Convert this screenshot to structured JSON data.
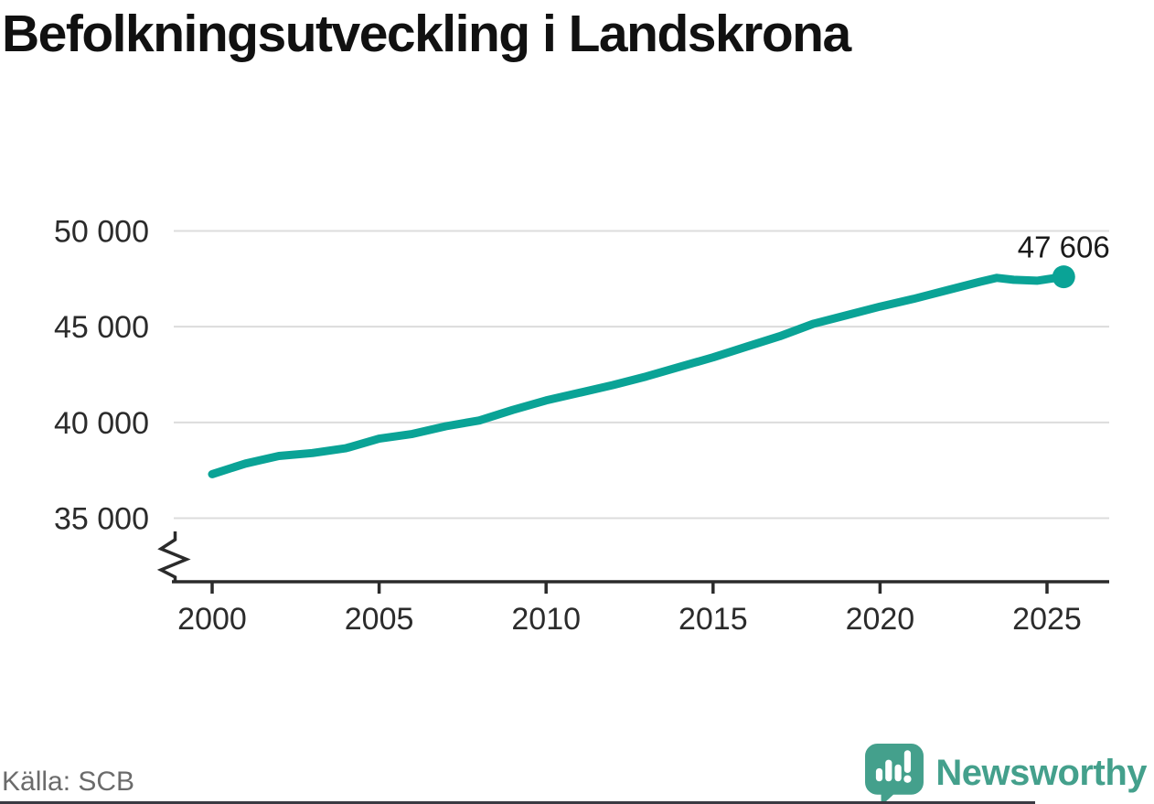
{
  "title": "Befolkningsutveckling i Landskrona",
  "source": "Källa: SCB",
  "branding": {
    "name": "Newsworthy"
  },
  "colors": {
    "line": "#0aa396",
    "marker": "#0aa396",
    "logo": "#44a08c",
    "grid": "#dcdcdc",
    "axis": "#2b2b2b",
    "tick_text": "#2b2b2b",
    "title_text": "#111111",
    "source_text": "#6b6b6b"
  },
  "chart_data": {
    "type": "line",
    "title": "Befolkningsutveckling i Landskrona",
    "xlabel": "",
    "ylabel": "",
    "grid": "horizontal",
    "legend": "none",
    "axis_break_on_y": true,
    "ylim": [
      35000,
      50000
    ],
    "xlim": [
      2000,
      2026
    ],
    "y_ticks": [
      35000,
      40000,
      45000,
      50000
    ],
    "y_tick_labels": [
      "35 000",
      "40 000",
      "45 000",
      "50 000"
    ],
    "x_ticks": [
      2000,
      2005,
      2010,
      2015,
      2020,
      2025
    ],
    "x_tick_labels": [
      "2000",
      "2005",
      "2010",
      "2015",
      "2020",
      "2025"
    ],
    "x": [
      2000,
      2001,
      2002,
      2003,
      2004,
      2005,
      2006,
      2007,
      2008,
      2009,
      2010,
      2011,
      2012,
      2013,
      2014,
      2015,
      2016,
      2017,
      2018,
      2019,
      2020,
      2021,
      2022,
      2023,
      2023.5,
      2024,
      2024.7,
      2025.5
    ],
    "values": [
      37300,
      37850,
      38250,
      38400,
      38650,
      39150,
      39400,
      39800,
      40100,
      40650,
      41150,
      41550,
      41950,
      42400,
      42900,
      43400,
      43950,
      44500,
      45150,
      45600,
      46050,
      46450,
      46900,
      47350,
      47550,
      47450,
      47400,
      47606
    ],
    "end_value": 47606,
    "end_label": "47 606"
  }
}
